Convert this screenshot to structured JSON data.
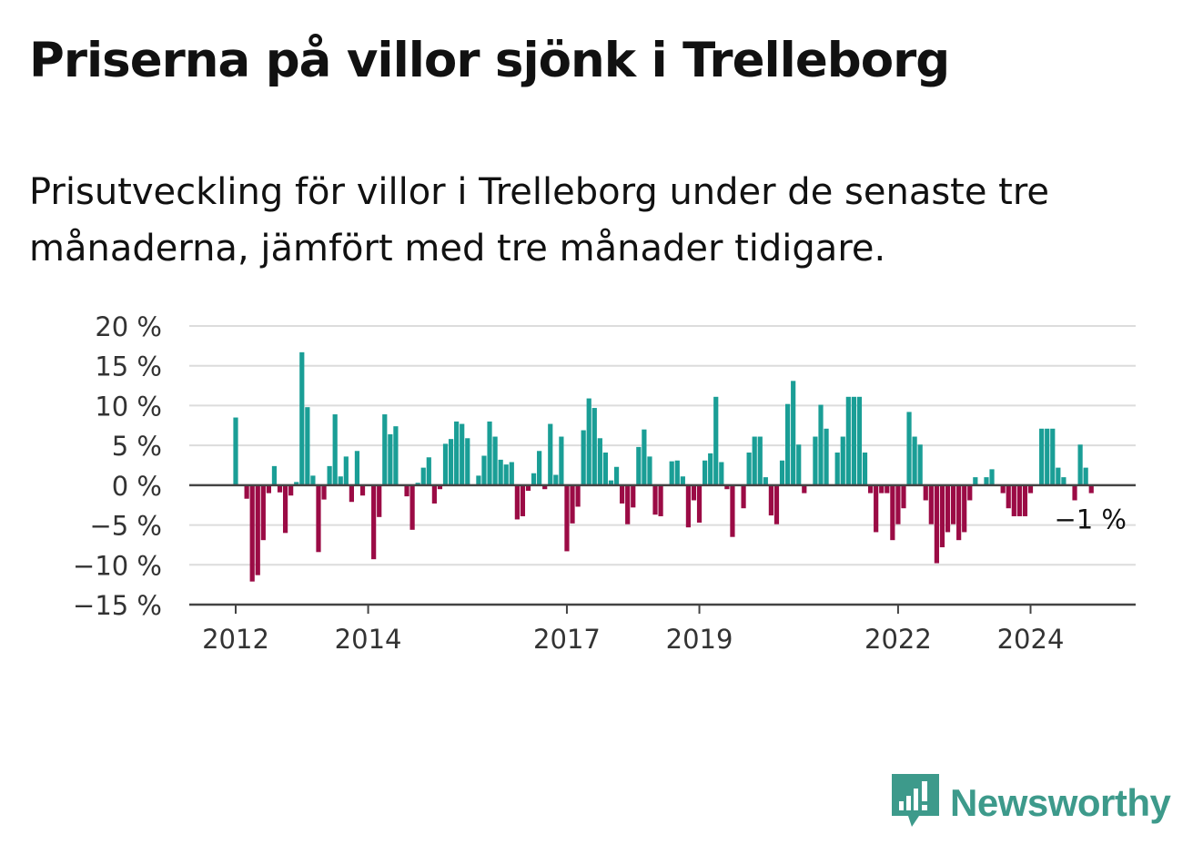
{
  "header": {
    "title": "Priserna på villor sjönk i Trelleborg",
    "subtitle": "Prisutveckling för villor i Trelleborg under de senaste tre månaderna, jämfört med tre månader tidigare."
  },
  "brand": {
    "name": "Newsworthy",
    "icon": "bar-chart-speech-bubble-icon",
    "color": "#3d9a8b"
  },
  "chart_data": {
    "type": "bar",
    "title": "",
    "xlabel": "",
    "ylabel": "",
    "ylim": [
      -15,
      20
    ],
    "y_ticks": [
      20,
      15,
      10,
      5,
      0,
      -5,
      -10,
      -15
    ],
    "y_tick_labels": [
      "20 %",
      "15 %",
      "10 %",
      "5 %",
      "0 %",
      "−5 %",
      "−10 %",
      "−15 %"
    ],
    "x_tick_labels": [
      "2012",
      "2014",
      "2017",
      "2019",
      "2022",
      "2024"
    ],
    "x_tick_dates": [
      "2012-01",
      "2014-01",
      "2017-01",
      "2019-01",
      "2022-01",
      "2024-01"
    ],
    "grid": true,
    "positive_color": "#1a9e96",
    "negative_color": "#9b0b45",
    "last_value_label": "−1 %",
    "series": [
      {
        "start": "2012-01",
        "values": [
          8.5,
          0,
          -1.7,
          -12.1,
          -11.3,
          -6.9,
          -1,
          2.4,
          -0.9,
          -6,
          -1.3,
          0.4,
          16.7,
          9.8,
          1.2,
          -8.4,
          -1.8,
          2.4,
          8.9,
          1.1,
          3.6,
          -2.1,
          4.3,
          -1.3,
          0,
          -9.3,
          -4,
          8.9,
          6.4,
          7.4,
          0,
          -1.4,
          -5.6,
          0.3,
          2.2,
          3.5,
          -2.3,
          -0.5,
          5.2,
          5.8,
          8,
          7.7,
          5.9,
          0,
          1.2,
          3.7,
          8,
          6.1,
          3.2,
          2.6,
          2.9,
          -4.3,
          -3.9,
          -0.7,
          1.5,
          4.3,
          -0.5,
          7.7,
          1.3,
          6.1,
          -8.3,
          -4.8,
          -2.7,
          6.9,
          10.9,
          9.7,
          5.9,
          4.1,
          0.6,
          2.3,
          -2.3,
          -4.9,
          -2.8,
          4.8,
          7,
          3.6,
          -3.7,
          -3.9,
          0,
          3,
          3.1,
          1.1,
          -5.3,
          -1.9,
          -4.7,
          3.1,
          4,
          11.1,
          2.9,
          -0.5,
          -6.5,
          0,
          -2.9,
          4.1,
          6.1,
          6.1,
          1,
          -3.8,
          -4.9,
          3.1,
          10.2,
          13.1,
          5.1,
          -1,
          0,
          6.1,
          10.1,
          7.1,
          0,
          4.1,
          6.1,
          11.1,
          11.1,
          11.1,
          4.1,
          -1,
          -5.9,
          -1,
          -1,
          -6.9,
          -4.9,
          -2.9,
          9.2,
          6.1,
          5.1,
          -1.9,
          -4.9,
          -9.8,
          -7.8,
          -5.9,
          -4.9,
          -6.9,
          -5.9,
          -1.9,
          1,
          0,
          1,
          2,
          0,
          -1,
          -2.9,
          -3.9,
          -3.9,
          -3.9,
          -1,
          0,
          7.1,
          7.1,
          7.1,
          2.2,
          1,
          0,
          -1.9,
          5.1,
          2.2,
          -1
        ]
      }
    ]
  }
}
